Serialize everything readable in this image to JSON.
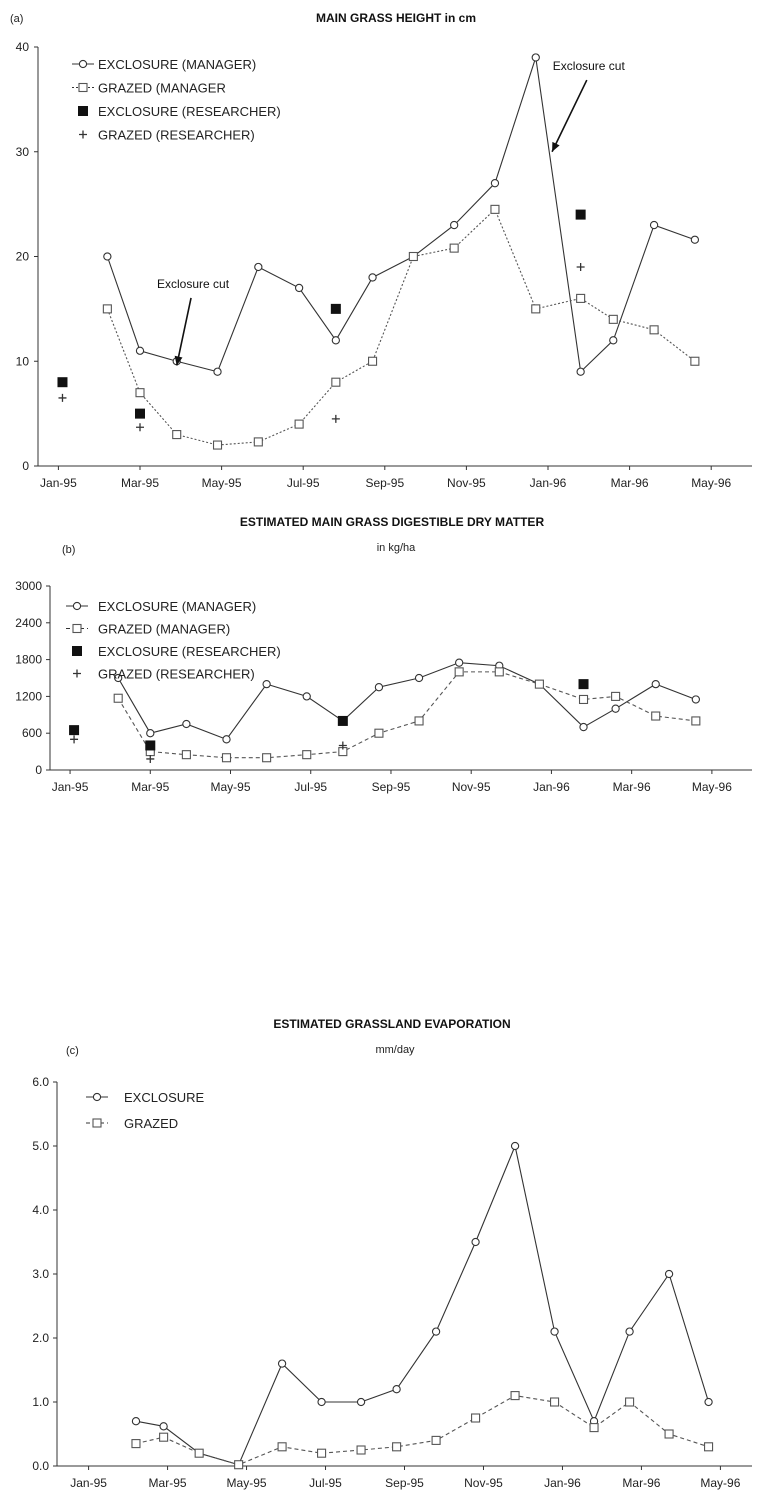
{
  "chart_data": [
    {
      "type": "line",
      "panel_label": "(a)",
      "title": "MAIN GRASS HEIGHT in cm",
      "subtitle": "",
      "xlabel": "",
      "ylabel": "",
      "ylim": [
        0,
        40
      ],
      "y_ticks": [
        "0",
        "10",
        "20",
        "30",
        "40"
      ],
      "x_tick_labels": [
        "Jan-95",
        "Mar-95",
        "May-95",
        "Jul-95",
        "Sep-95",
        "Nov-95",
        "Jan-96",
        "Mar-96",
        "May-96"
      ],
      "x_tick_months": [
        1,
        3,
        5,
        7,
        9,
        11,
        13,
        15,
        17
      ],
      "xlim": [
        0.5,
        18
      ],
      "grid": false,
      "legend_position": "top-left",
      "series": [
        {
          "name": "EXCLOSURE (MANAGER)",
          "marker": "circle",
          "line": "solid",
          "x": [
            2.2,
            3.0,
            3.9,
            4.9,
            5.9,
            6.9,
            7.8,
            8.7,
            9.7,
            10.7,
            11.7,
            12.7,
            13.8,
            14.6,
            15.6,
            16.6
          ],
          "y": [
            20,
            11,
            10,
            9,
            19,
            17,
            12,
            18,
            20,
            23,
            27,
            39,
            9,
            12,
            23,
            21.6
          ]
        },
        {
          "name": "GRAZED (MANAGER",
          "marker": "square",
          "line": "dotted",
          "x": [
            2.2,
            3.0,
            3.9,
            4.9,
            5.9,
            6.9,
            7.8,
            8.7,
            9.7,
            10.7,
            11.7,
            12.7,
            13.8,
            14.6,
            15.6,
            16.6
          ],
          "y": [
            15,
            7,
            3,
            2,
            2.3,
            4,
            8,
            10,
            20,
            20.8,
            24.5,
            15,
            16,
            14,
            13,
            10
          ]
        },
        {
          "name": "EXCLOSURE (RESEARCHER)",
          "marker": "filled-square",
          "line": "none",
          "x": [
            1.1,
            3.0,
            7.8,
            13.8
          ],
          "y": [
            8,
            5,
            15,
            24
          ]
        },
        {
          "name": "GRAZED (RESEARCHER)",
          "marker": "plus",
          "line": "none",
          "x": [
            1.1,
            3.0,
            7.8,
            13.8
          ],
          "y": [
            6.5,
            3.7,
            4.5,
            19
          ]
        }
      ],
      "annotations": [
        {
          "text": "Exclosure cut",
          "x": 4.3,
          "y": 17,
          "arrow_to": [
            3.9,
            9.6
          ]
        },
        {
          "text": "Exclosure cut",
          "x": 14.0,
          "y": 37.8,
          "arrow_to": [
            13.1,
            30
          ]
        }
      ]
    },
    {
      "type": "line",
      "panel_label": "(b)",
      "title": "ESTIMATED MAIN GRASS DIGESTIBLE DRY MATTER",
      "subtitle": "in kg/ha",
      "xlabel": "",
      "ylabel": "",
      "ylim": [
        0,
        3000
      ],
      "y_ticks": [
        "0",
        "600",
        "1200",
        "1800",
        "2400",
        "3000"
      ],
      "x_tick_labels": [
        "Jan-95",
        "Mar-95",
        "May-95",
        "Jul-95",
        "Sep-95",
        "Nov-95",
        "Jan-96",
        "Mar-96",
        "May-96"
      ],
      "x_tick_months": [
        1,
        3,
        5,
        7,
        9,
        11,
        13,
        15,
        17
      ],
      "xlim": [
        0.5,
        18
      ],
      "grid": false,
      "legend_position": "top-left",
      "series": [
        {
          "name": "EXCLOSURE (MANAGER)",
          "marker": "circle",
          "line": "solid",
          "x": [
            2.2,
            3.0,
            3.9,
            4.9,
            5.9,
            6.9,
            7.8,
            8.7,
            9.7,
            10.7,
            11.7,
            12.7,
            13.8,
            14.6,
            15.6,
            16.6
          ],
          "y": [
            1500,
            600,
            750,
            500,
            1400,
            1200,
            800,
            1350,
            1500,
            1750,
            1700,
            1400,
            700,
            1000,
            1400,
            1150
          ]
        },
        {
          "name": "GRAZED (MANAGER)",
          "marker": "square",
          "line": "dashed",
          "x": [
            2.2,
            3.0,
            3.9,
            4.9,
            5.9,
            6.9,
            7.8,
            8.7,
            9.7,
            10.7,
            11.7,
            12.7,
            13.8,
            14.6,
            15.6,
            16.6
          ],
          "y": [
            1170,
            300,
            250,
            200,
            200,
            250,
            300,
            600,
            800,
            1600,
            1600,
            1400,
            1150,
            1200,
            880,
            800
          ]
        },
        {
          "name": "EXCLOSURE (RESEARCHER)",
          "marker": "filled-square",
          "line": "none",
          "x": [
            1.1,
            3.0,
            7.8,
            13.8
          ],
          "y": [
            650,
            400,
            800,
            1400
          ]
        },
        {
          "name": "GRAZED (RESEARCHER)",
          "marker": "plus",
          "line": "none",
          "x": [
            1.1,
            3.0,
            7.8
          ],
          "y": [
            500,
            180,
            400
          ]
        }
      ]
    },
    {
      "type": "line",
      "panel_label": "(c)",
      "title": "ESTIMATED GRASSLAND EVAPORATION",
      "subtitle": "mm/day",
      "xlabel": "",
      "ylabel": "",
      "ylim": [
        0,
        6
      ],
      "y_ticks": [
        "0.0",
        "1.0",
        "2.0",
        "3.0",
        "4.0",
        "5.0",
        "6.0"
      ],
      "x_tick_labels": [
        "Jan-95",
        "Mar-95",
        "May-95",
        "Jul-95",
        "Sep-95",
        "Nov-95",
        "Jan-96",
        "Mar-96",
        "May-96"
      ],
      "x_tick_months": [
        1,
        3,
        5,
        7,
        9,
        11,
        13,
        15,
        17
      ],
      "xlim": [
        0.2,
        17.8
      ],
      "grid": false,
      "legend_position": "top-left",
      "series": [
        {
          "name": "EXCLOSURE",
          "marker": "circle",
          "line": "solid",
          "x": [
            2.2,
            2.9,
            3.8,
            4.8,
            5.9,
            6.9,
            7.9,
            8.8,
            9.8,
            10.8,
            11.8,
            12.8,
            13.8,
            14.7,
            15.7,
            16.7
          ],
          "y": [
            0.7,
            0.62,
            0.2,
            0.02,
            1.6,
            1.0,
            1.0,
            1.2,
            2.1,
            3.5,
            5.0,
            2.1,
            0.7,
            2.1,
            3.0,
            1.0
          ]
        },
        {
          "name": "GRAZED",
          "marker": "square",
          "line": "dashed",
          "x": [
            2.2,
            2.9,
            3.8,
            4.8,
            5.9,
            6.9,
            7.9,
            8.8,
            9.8,
            10.8,
            11.8,
            12.8,
            13.8,
            14.7,
            15.7,
            16.7
          ],
          "y": [
            0.35,
            0.45,
            0.2,
            0.02,
            0.3,
            0.2,
            0.25,
            0.3,
            0.4,
            0.75,
            1.1,
            1.0,
            0.6,
            1.0,
            0.5,
            0.3
          ]
        }
      ]
    }
  ]
}
